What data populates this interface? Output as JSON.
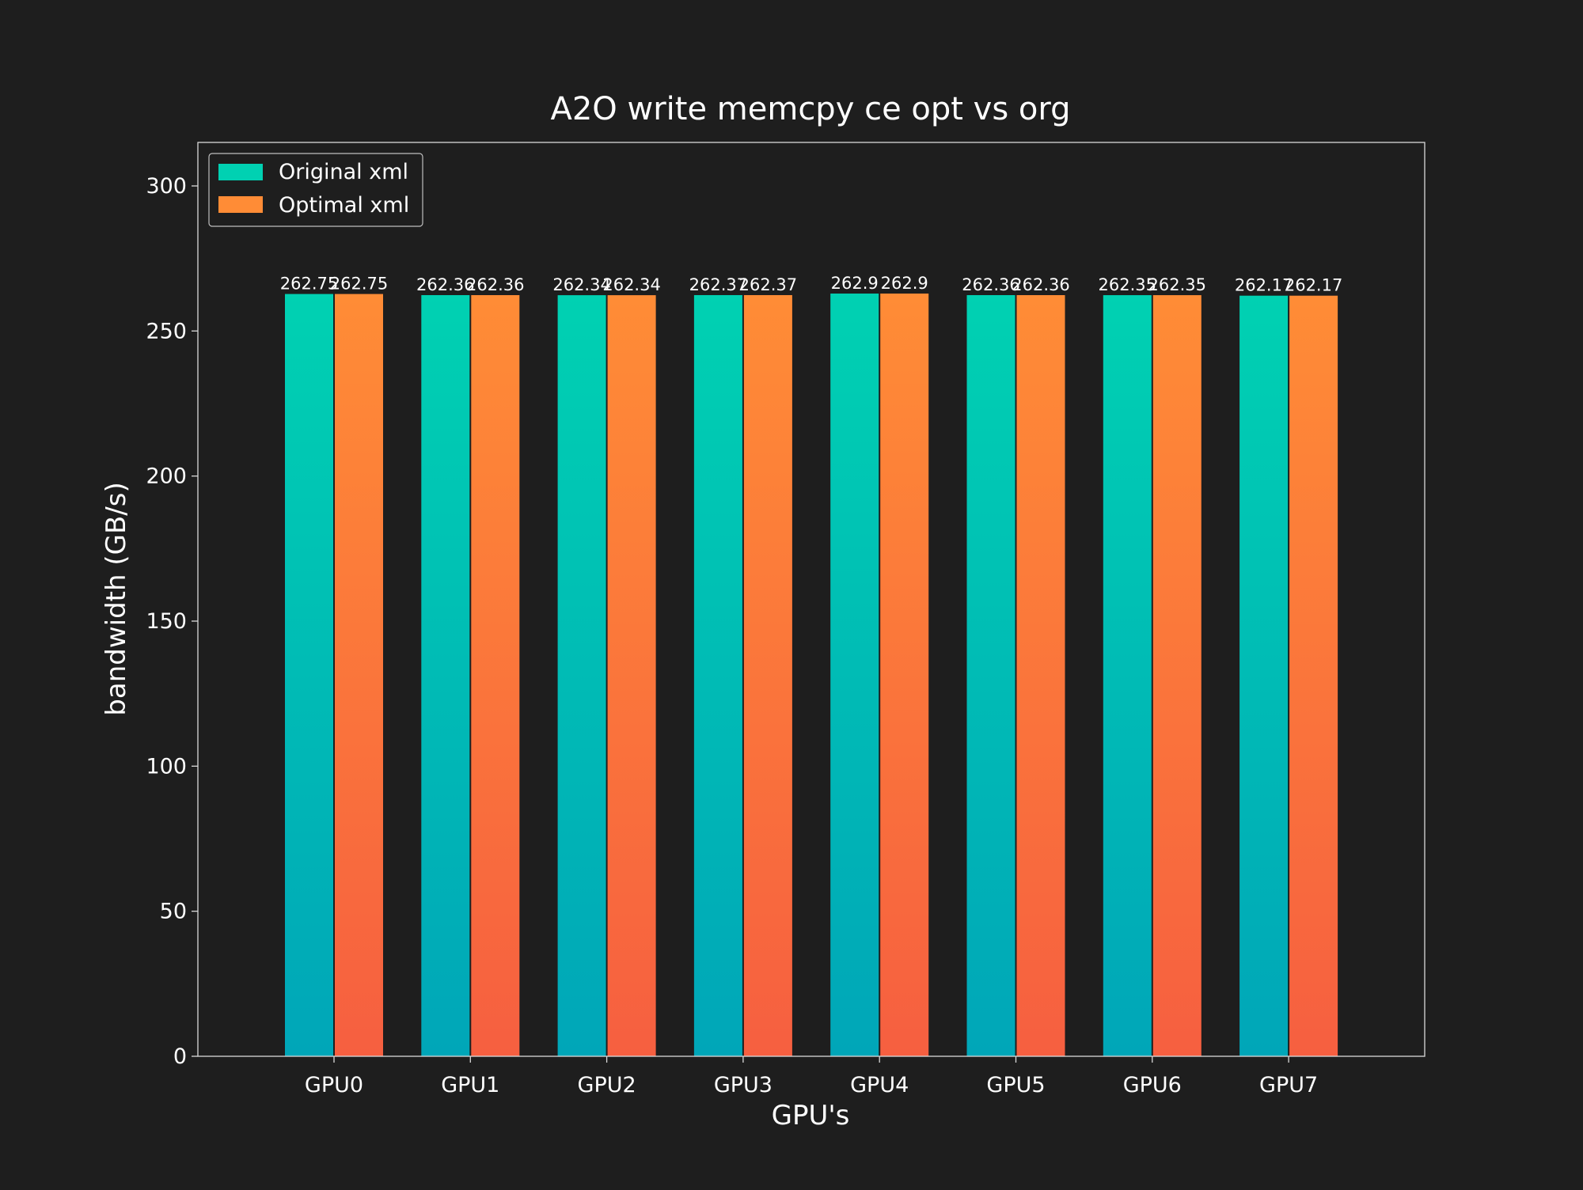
{
  "colors": {
    "background": "#1e1e1e",
    "text": "#ffffff",
    "frame": "#d9d9d9",
    "series_original_top": "#00d1b2",
    "series_original_bottom": "#00a6b8",
    "series_optimal_top": "#ff8c36",
    "series_optimal_bottom": "#f65f40"
  },
  "chart_data": {
    "type": "bar",
    "title": "A2O write memcpy ce opt vs org",
    "xlabel": "GPU's",
    "ylabel": "bandwidth (GB/s)",
    "categories": [
      "GPU0",
      "GPU1",
      "GPU2",
      "GPU3",
      "GPU4",
      "GPU5",
      "GPU6",
      "GPU7"
    ],
    "series": [
      {
        "name": "Original xml",
        "values": [
          262.75,
          262.36,
          262.34,
          262.37,
          262.9,
          262.36,
          262.35,
          262.17
        ],
        "labels": [
          "262.75",
          "262.36",
          "262.34",
          "262.37",
          "262.9",
          "262.36",
          "262.35",
          "262.17"
        ]
      },
      {
        "name": "Optimal xml",
        "values": [
          262.75,
          262.36,
          262.34,
          262.37,
          262.9,
          262.36,
          262.35,
          262.17
        ],
        "labels": [
          "262.75",
          "262.36",
          "262.34",
          "262.37",
          "262.9",
          "262.36",
          "262.35",
          "262.17"
        ]
      }
    ],
    "ylim": [
      0,
      315
    ],
    "yticks": [
      0,
      50,
      100,
      150,
      200,
      250,
      300
    ],
    "grid": false,
    "legend": "top-left"
  }
}
